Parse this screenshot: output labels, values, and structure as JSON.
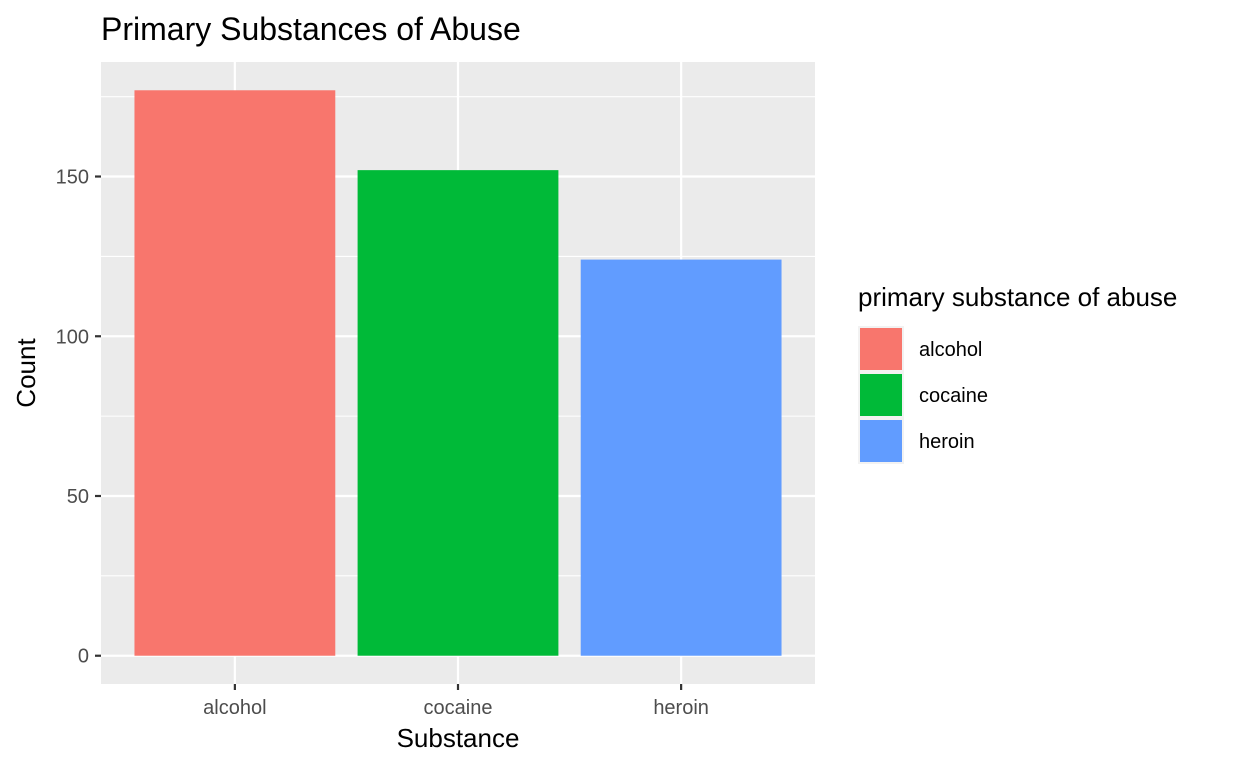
{
  "chart_data": {
    "type": "bar",
    "title": "Primary Substances of Abuse",
    "xlabel": "Substance",
    "ylabel": "Count",
    "categories": [
      "alcohol",
      "cocaine",
      "heroin"
    ],
    "values": [
      177,
      152,
      124
    ],
    "colors": [
      "#F8766D",
      "#00BA38",
      "#619CFF"
    ],
    "ylim": [
      -8.85,
      185.85
    ],
    "yticks": [
      0,
      50,
      100,
      150
    ],
    "ytick_labels": [
      "0",
      "50",
      "100",
      "150"
    ],
    "grid": true,
    "panel_background": "#EBEBEB",
    "legend": {
      "title": "primary substance of abuse",
      "position": "right",
      "items": [
        {
          "label": "alcohol",
          "color": "#F8766D"
        },
        {
          "label": "cocaine",
          "color": "#00BA38"
        },
        {
          "label": "heroin",
          "color": "#619CFF"
        }
      ]
    }
  }
}
